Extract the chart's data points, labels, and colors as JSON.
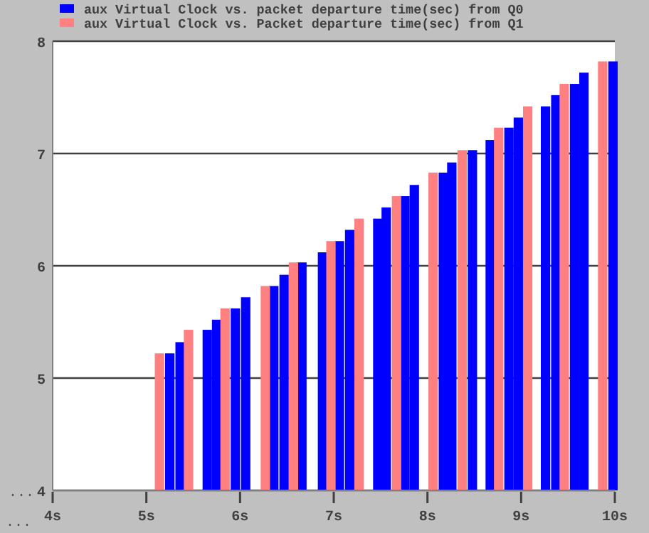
{
  "chart_data": {
    "type": "bar",
    "xlim": [
      4,
      10
    ],
    "xticks": [
      {
        "value": 4,
        "label": "4s"
      },
      {
        "value": 5,
        "label": "5s"
      },
      {
        "value": 6,
        "label": "6s"
      },
      {
        "value": 7,
        "label": "7s"
      },
      {
        "value": 8,
        "label": "8s"
      },
      {
        "value": 9,
        "label": "9s"
      },
      {
        "value": 10,
        "label": "10s"
      }
    ],
    "ylim": [
      4,
      8
    ],
    "yticks": [
      4,
      5,
      6,
      7,
      8
    ],
    "grid": "y",
    "legend": "top",
    "annotations": [
      "...",
      "..."
    ],
    "series": [
      {
        "name": "aux Virtual Clock vs. packet departure time(sec) from Q0",
        "color": "#0000ff",
        "x": [
          5.25,
          5.36,
          5.65,
          5.75,
          5.95,
          6.06,
          6.36,
          6.47,
          6.66,
          6.88,
          7.06,
          7.17,
          7.47,
          7.56,
          7.76,
          7.86,
          8.17,
          8.26,
          8.48,
          8.67,
          8.87,
          8.97,
          9.26,
          9.37,
          9.57,
          9.67,
          9.98
        ],
        "values": [
          5.22,
          5.32,
          5.43,
          5.52,
          5.62,
          5.72,
          5.82,
          5.92,
          6.03,
          6.12,
          6.22,
          6.32,
          6.42,
          6.52,
          6.62,
          6.72,
          6.83,
          6.92,
          7.03,
          7.12,
          7.23,
          7.32,
          7.42,
          7.52,
          7.62,
          7.72,
          7.82
        ]
      },
      {
        "name": "aux Virtual Clock vs. Packet departure time(sec) from Q1",
        "color": "#ff8080",
        "x": [
          5.14,
          5.45,
          5.84,
          6.27,
          6.57,
          6.97,
          7.27,
          7.67,
          8.06,
          8.37,
          8.76,
          9.07,
          9.46,
          9.87
        ],
        "values": [
          5.22,
          5.43,
          5.62,
          5.82,
          6.03,
          6.22,
          6.42,
          6.62,
          6.83,
          7.03,
          7.23,
          7.42,
          7.62,
          7.82
        ]
      }
    ]
  }
}
